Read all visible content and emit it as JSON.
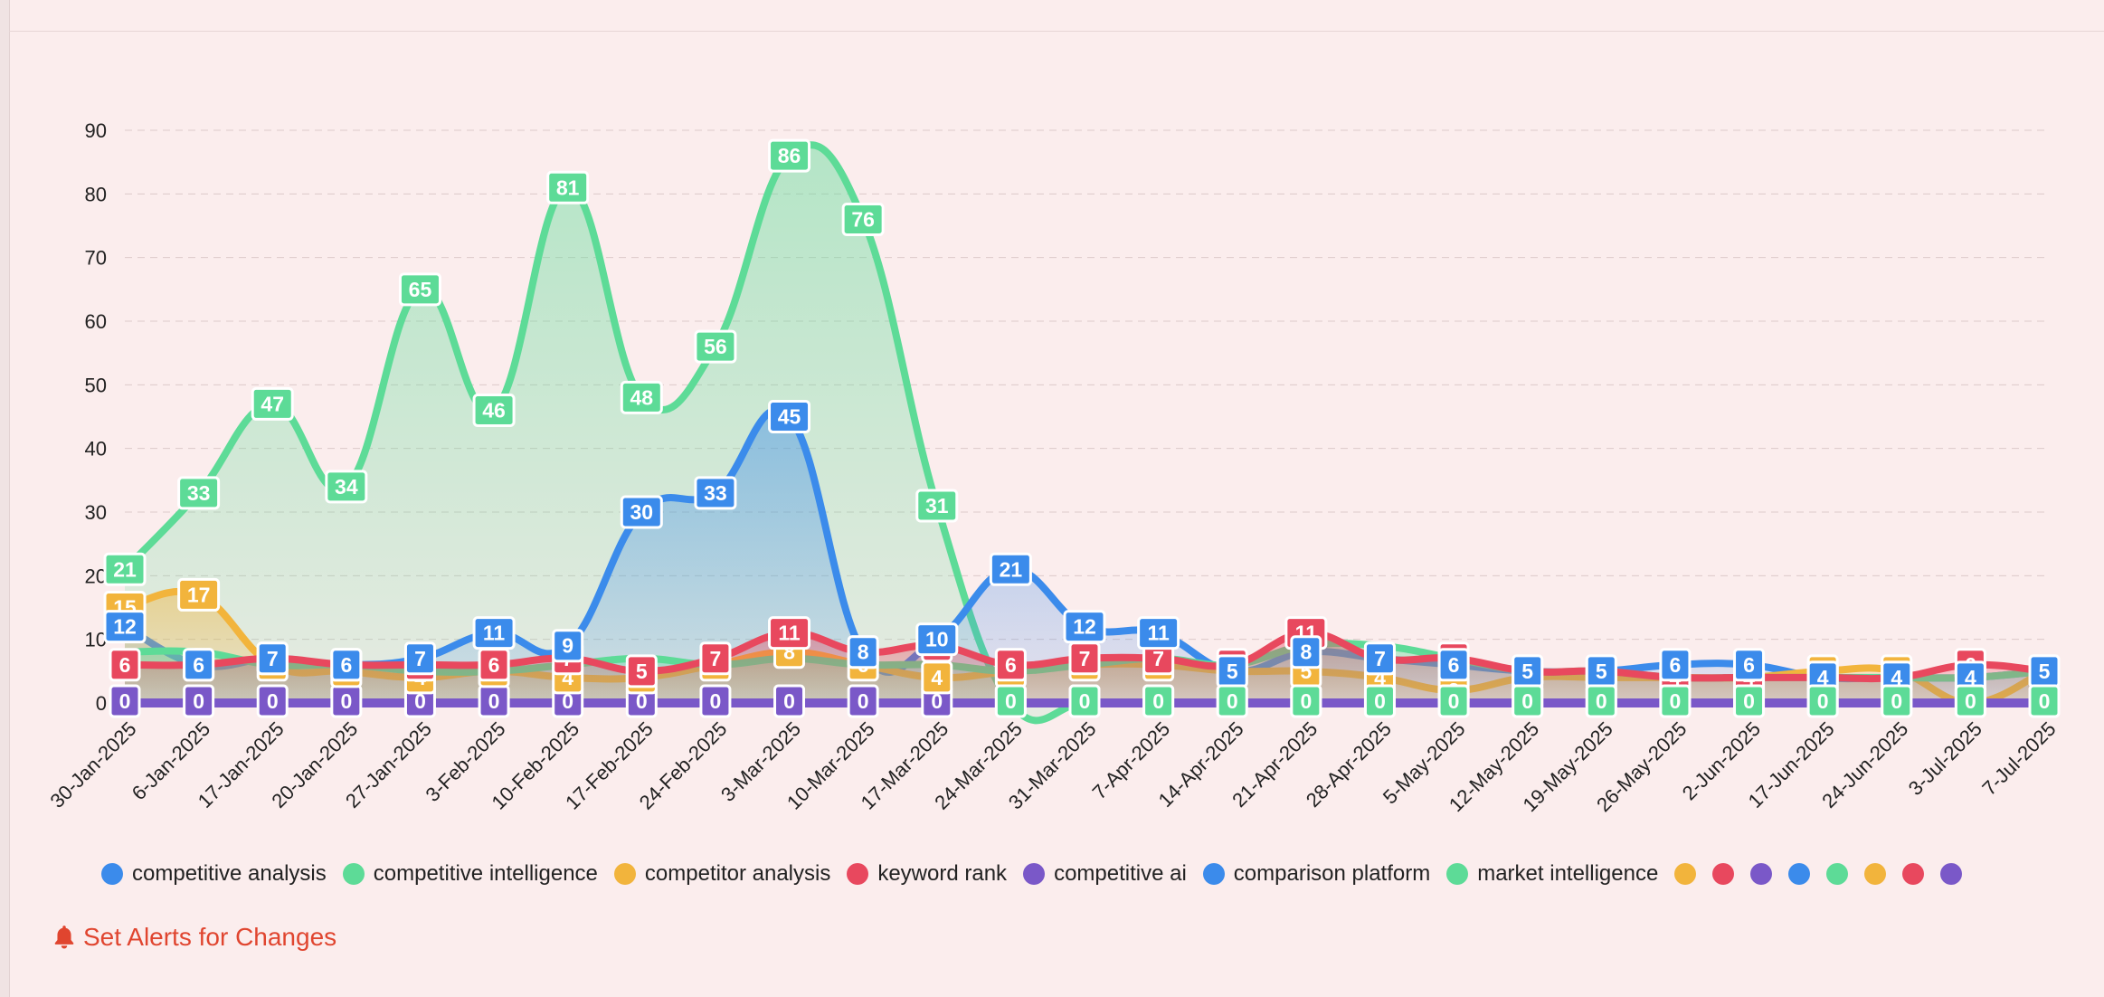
{
  "chart_data": {
    "type": "area",
    "title": "",
    "xlabel": "",
    "ylabel": "",
    "ylim": [
      0,
      95
    ],
    "y_ticks": [
      0,
      10,
      20,
      30,
      40,
      50,
      60,
      70,
      80,
      90
    ],
    "grid": true,
    "legend_position": "bottom",
    "categories": [
      "30-Jan-2025",
      "6-Jan-2025",
      "17-Jan-2025",
      "20-Jan-2025",
      "27-Jan-2025",
      "3-Feb-2025",
      "10-Feb-2025",
      "17-Feb-2025",
      "24-Feb-2025",
      "3-Mar-2025",
      "10-Mar-2025",
      "17-Mar-2025",
      "24-Mar-2025",
      "31-Mar-2025",
      "7-Apr-2025",
      "14-Apr-2025",
      "21-Apr-2025",
      "28-Apr-2025",
      "5-May-2025",
      "12-May-2025",
      "19-May-2025",
      "26-May-2025",
      "2-Jun-2025",
      "17-Jun-2025",
      "24-Jun-2025",
      "3-Jul-2025",
      "7-Jul-2025"
    ],
    "series": [
      {
        "name": "competitive analysis",
        "color": "#3b8beb",
        "values": [
          12,
          6,
          7,
          6,
          7,
          11,
          9,
          30,
          33,
          45,
          8,
          10,
          21,
          12,
          11,
          5,
          8,
          7,
          6,
          5,
          5,
          6,
          6,
          4,
          4,
          4,
          5
        ]
      },
      {
        "name": "competitive intelligence",
        "color": "#5ddb97",
        "values": [
          21,
          33,
          47,
          34,
          65,
          46,
          81,
          48,
          56,
          86,
          76,
          31,
          0,
          0,
          0,
          0,
          0,
          0,
          0,
          0,
          0,
          0,
          0,
          0,
          0,
          0,
          0
        ]
      },
      {
        "name": "competitor analysis",
        "color": "#f2b43c",
        "values": [
          15,
          17,
          6,
          5,
          4,
          5,
          4,
          4,
          6,
          8,
          6,
          4,
          5,
          6,
          6,
          5,
          5,
          4,
          2,
          4,
          4,
          4,
          4,
          5,
          5,
          0,
          5
        ]
      },
      {
        "name": "keyword rank",
        "color": "#e8485e",
        "values": [
          6,
          6,
          7,
          6,
          6,
          6,
          7,
          5,
          7,
          11,
          8,
          9,
          6,
          7,
          7,
          6,
          11,
          7,
          7,
          5,
          5,
          4,
          4,
          4,
          4,
          6,
          5
        ]
      },
      {
        "name": "competitive ai",
        "color": "#7a58c8",
        "values": [
          0,
          0,
          0,
          0,
          0,
          0,
          0,
          0,
          0,
          0,
          0,
          0,
          0,
          0,
          0,
          0,
          0,
          0,
          0,
          0,
          0,
          0,
          0,
          0,
          0,
          0,
          0
        ]
      },
      {
        "name": "comparison platform",
        "color": "#3b8beb",
        "values": [
          0,
          0,
          0,
          0,
          0,
          0,
          0,
          0,
          0,
          0,
          0,
          0,
          0,
          0,
          0,
          0,
          0,
          0,
          0,
          0,
          0,
          0,
          0,
          0,
          0,
          0,
          0
        ]
      },
      {
        "name": "market intelligence",
        "color": "#5ddb97",
        "values": [
          8,
          8,
          6,
          6,
          5,
          5,
          6,
          7,
          6,
          7,
          6,
          6,
          5,
          6,
          7,
          6,
          9,
          9,
          7,
          5,
          5,
          4,
          4,
          4,
          4,
          4,
          5
        ]
      }
    ],
    "labeled_series": [
      0,
      1,
      2,
      3,
      4
    ],
    "zero_label_series": [
      4,
      1
    ],
    "extra_legend_colors": [
      "#f2b43c",
      "#e8485e",
      "#7a58c8",
      "#3b8beb",
      "#5ddb97",
      "#f2b43c",
      "#e8485e",
      "#7a58c8"
    ]
  },
  "alerts": {
    "label": "Set Alerts for Changes",
    "icon": "bell-icon"
  }
}
